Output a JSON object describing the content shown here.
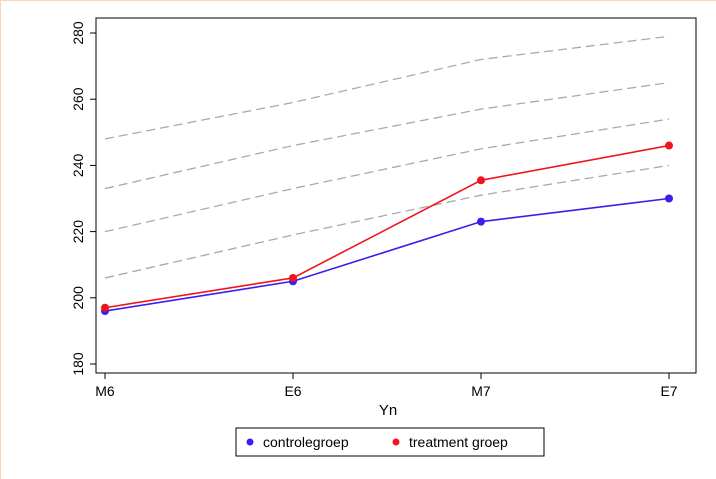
{
  "chart_data": {
    "type": "line",
    "title": "",
    "xlabel": "Yn",
    "ylabel": "",
    "categories": [
      "M6",
      "E6",
      "M7",
      "E7"
    ],
    "ylim": [
      180,
      280
    ],
    "yticks": [
      180,
      200,
      220,
      240,
      260,
      280
    ],
    "grid": false,
    "legend_position": "bottom",
    "series": [
      {
        "name": "controlegroep",
        "values": [
          196,
          205,
          223,
          230
        ],
        "color": "#3b1eea",
        "style": "solid",
        "markers": true
      },
      {
        "name": "treatment groep",
        "values": [
          197,
          206,
          235.5,
          246
        ],
        "color": "#f0141e",
        "style": "solid",
        "markers": true
      },
      {
        "name": "",
        "values": [
          206,
          219,
          231,
          240
        ],
        "color": "#aaaaaa",
        "style": "dashed",
        "markers": false
      },
      {
        "name": "",
        "values": [
          220,
          233,
          245,
          254
        ],
        "color": "#aaaaaa",
        "style": "dashed",
        "markers": false
      },
      {
        "name": "",
        "values": [
          233,
          246,
          257,
          265
        ],
        "color": "#aaaaaa",
        "style": "dashed",
        "markers": false
      },
      {
        "name": "",
        "values": [
          248,
          259,
          272,
          279
        ],
        "color": "#aaaaaa",
        "style": "dashed",
        "markers": false
      }
    ]
  }
}
